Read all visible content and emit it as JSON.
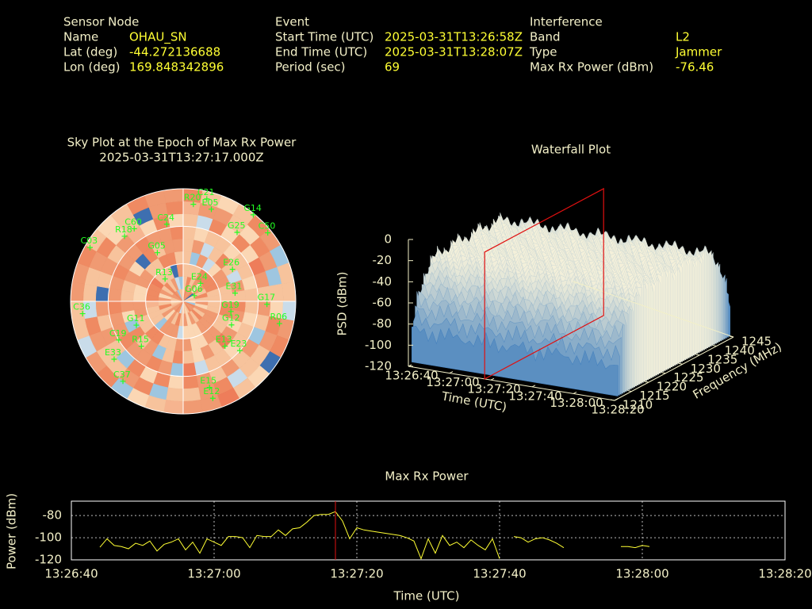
{
  "header": {
    "columns": [
      {
        "title": "Sensor Node",
        "rows": [
          [
            "Name",
            "OHAU_SN"
          ],
          [
            "Lat (deg)",
            -44.272136688
          ],
          [
            "Lon (deg)",
            169.848342896
          ]
        ]
      },
      {
        "title": "Event",
        "rows": [
          [
            "Start Time (UTC)",
            "2025-03-31T13:26:58Z"
          ],
          [
            "End Time (UTC)",
            "2025-03-31T13:28:07Z"
          ],
          [
            "Period (sec)",
            69
          ]
        ]
      },
      {
        "title": "Interference",
        "rows": [
          [
            "Band",
            "L2"
          ],
          [
            "Type",
            "Jammer"
          ],
          [
            "Max Rx Power (dBm)",
            -76.46
          ]
        ]
      }
    ]
  },
  "chart_data": [
    {
      "type": "polar",
      "title": "Sky Plot at the Epoch of Max Rx Power",
      "subtitle": "2025-03-31T13:27:17.000Z",
      "color": "#22ff22",
      "labels": [
        "C21",
        "R20",
        "E05",
        "G14",
        "G25",
        "C50",
        "C24",
        "C60",
        "R18",
        "C03",
        "G05",
        "E26",
        "R13",
        "E24",
        "G06",
        "E31",
        "G17",
        "R06",
        "G19",
        "G12",
        "E13",
        "E23",
        "R15",
        "C19",
        "C36",
        "G11",
        "E33",
        "C37",
        "E15",
        "E12"
      ],
      "azimuth": [
        13,
        6,
        17,
        39,
        38,
        51,
        348,
        326,
        318,
        300,
        332,
        57,
        321,
        44,
        63,
        81,
        92,
        103,
        102,
        116,
        137,
        131,
        223,
        239,
        263,
        243,
        230,
        217,
        163,
        163
      ],
      "elevation": [
        6,
        12,
        13,
        1,
        20,
        3,
        27,
        20,
        20,
        4,
        46,
        43,
        67,
        70,
        80,
        48,
        23,
        11,
        51,
        47,
        41,
        30,
        41,
        30,
        9,
        48,
        18,
        10,
        18,
        9
      ]
    },
    {
      "type": "surface",
      "title": "Waterfall Plot",
      "xlabel": "Time (UTC)",
      "ylabel": "Frequency (MHz)",
      "zlabel": "PSD (dBm)",
      "xlim": [
        "13:26:40",
        "13:28:20"
      ],
      "xticks": [
        "13:26:40",
        "13:27:00",
        "13:27:20",
        "13:27:40",
        "13:28:00",
        "13:28:20"
      ],
      "ylim": [
        1210,
        1245
      ],
      "yticks": [
        1210,
        1215,
        1220,
        1225,
        1230,
        1235,
        1240,
        1245
      ],
      "zlim": [
        -120,
        0
      ],
      "zticks": [
        0,
        -20,
        -40,
        -60,
        -80,
        -100,
        -120
      ]
    },
    {
      "type": "line",
      "title": "Max Rx Power",
      "xlabel": "Time (UTC)",
      "ylabel": "Power (dBm)",
      "color": "#ffff33",
      "grid": true,
      "xlim": [
        "13:26:40",
        "13:28:20"
      ],
      "xticks": [
        "13:26:40",
        "13:27:00",
        "13:27:20",
        "13:27:40",
        "13:28:00",
        "13:28:20"
      ],
      "ylim": [
        -120,
        -67
      ],
      "yticks": [
        -80,
        -100,
        -120
      ],
      "x": [
        "13:26:44",
        "13:26:45",
        "13:26:46",
        "13:26:47",
        "13:26:48",
        "13:26:49",
        "13:26:50",
        "13:26:51",
        "13:26:52",
        "13:26:53",
        "13:26:54",
        "13:26:55",
        "13:26:56",
        "13:26:57",
        "13:26:58",
        "13:26:59",
        "13:27:00",
        "13:27:01",
        "13:27:02",
        "13:27:03",
        "13:27:04",
        "13:27:05",
        "13:27:06",
        "13:27:07",
        "13:27:08",
        "13:27:09",
        "13:27:10",
        "13:27:11",
        "13:27:12",
        "13:27:13",
        "13:27:14",
        "13:27:15",
        "13:27:16",
        "13:27:17",
        "13:27:18",
        "13:27:19",
        "13:27:20",
        "13:27:21",
        "13:27:22",
        "13:27:23",
        "13:27:24",
        "13:27:25",
        "13:27:26",
        "13:27:27",
        "13:27:28",
        "13:27:29",
        "13:27:30",
        "13:27:31",
        "13:27:32",
        "13:27:33",
        "13:27:34",
        "13:27:35",
        "13:27:36",
        "13:27:37",
        "13:27:38",
        "13:27:39",
        "13:27:40",
        "13:27:41",
        "13:27:42",
        "13:27:43",
        "13:27:44",
        "13:27:45",
        "13:27:46",
        "13:27:47",
        "13:27:48",
        "13:27:49",
        "13:27:50",
        "13:27:57",
        "13:27:58",
        "13:27:59",
        "13:28:00",
        "13:28:01"
      ],
      "values": [
        -108.6,
        -101,
        -107,
        -108,
        -110,
        -105,
        -107,
        -103,
        -112,
        -106,
        -104,
        -101,
        -111,
        -104,
        -114,
        -101,
        -104,
        -107,
        -99,
        -99,
        -100,
        -109,
        -98,
        -99,
        -99,
        -93,
        -98,
        -92,
        -91,
        -86,
        -80,
        -79,
        -79,
        -76.46,
        -85,
        -101,
        -91,
        -93,
        -94,
        -95,
        -96,
        -97,
        -98,
        -100,
        -103,
        -119,
        -101,
        -114,
        -98,
        -107,
        -104,
        -109,
        -102,
        -107,
        -111,
        -101,
        -119,
        null,
        -99,
        -100,
        -104,
        -101,
        -100,
        -102,
        -105,
        -109,
        null,
        -108,
        -108,
        -109,
        -107,
        -108
      ]
    }
  ]
}
